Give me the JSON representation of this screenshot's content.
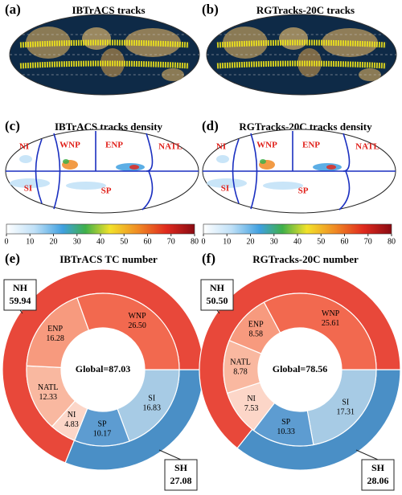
{
  "chart_data": [
    {
      "type": "map",
      "panel": "(a)",
      "title": "IBTrACS tracks"
    },
    {
      "type": "map",
      "panel": "(b)",
      "title": "RGTracks-20C tracks"
    },
    {
      "type": "density_map",
      "panel": "(c)",
      "title": "IBTrACS tracks density",
      "regions": [
        "NI",
        "WNP",
        "ENP",
        "NATL",
        "SI",
        "SP"
      ],
      "colorbar": {
        "xlim": [
          0,
          80
        ],
        "xticks": [
          0,
          10,
          20,
          30,
          40,
          50,
          60,
          70,
          80
        ]
      }
    },
    {
      "type": "density_map",
      "panel": "(d)",
      "title": "RGTracks-20C tracks density",
      "regions": [
        "NI",
        "WNP",
        "ENP",
        "NATL",
        "SI",
        "SP"
      ],
      "colorbar": {
        "xlim": [
          0,
          80
        ],
        "xticks": [
          0,
          10,
          20,
          30,
          40,
          50,
          60,
          70,
          80
        ]
      }
    },
    {
      "type": "pie",
      "panel": "(e)",
      "title": "IBTrACS TC number",
      "center_label": "Global=87.03",
      "rings": [
        {
          "categories": [
            "SH",
            "NH"
          ],
          "values": [
            27.08,
            59.94
          ],
          "value_labels": [
            "27.08",
            "59.94"
          ],
          "colors": [
            "#4a8fc6",
            "#e8483a"
          ]
        },
        {
          "categories": [
            "SI",
            "SP",
            "NI",
            "NATL",
            "ENP",
            "WNP"
          ],
          "values": [
            16.83,
            10.17,
            4.83,
            12.33,
            16.28,
            26.5
          ],
          "value_labels": [
            "16.83",
            "10.17",
            "4.83",
            "12.33",
            "16.28",
            "26.50"
          ],
          "colors": [
            "#a7cbe5",
            "#5d9cd1",
            "#fcd6c8",
            "#f9b8a0",
            "#f79a7e",
            "#f2694f"
          ]
        }
      ]
    },
    {
      "type": "pie",
      "panel": "(f)",
      "title": "RGTracks-20C number",
      "center_label": "Global=78.56",
      "rings": [
        {
          "categories": [
            "SH",
            "NH"
          ],
          "values": [
            28.06,
            50.5
          ],
          "value_labels": [
            "28.06",
            "50.50"
          ],
          "colors": [
            "#4a8fc6",
            "#e8483a"
          ]
        },
        {
          "categories": [
            "SI",
            "SP",
            "NI",
            "NATL",
            "ENP",
            "WNP"
          ],
          "values": [
            17.31,
            10.33,
            7.53,
            8.78,
            8.58,
            25.61
          ],
          "value_labels": [
            "17.31",
            "10.33",
            "7.53",
            "8.78",
            "8.58",
            "25.61"
          ],
          "colors": [
            "#a7cbe5",
            "#5d9cd1",
            "#fcd6c8",
            "#f9b8a0",
            "#f79a7e",
            "#f2694f"
          ]
        }
      ]
    }
  ]
}
